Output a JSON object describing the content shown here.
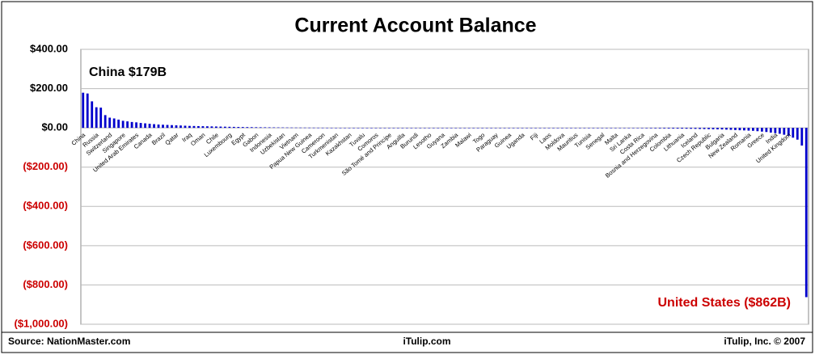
{
  "chart_data": {
    "type": "bar",
    "title": "Current Account Balance",
    "categories": [
      "China",
      null,
      null,
      "Russia",
      null,
      null,
      "Switzerland",
      null,
      null,
      "Singapore",
      null,
      null,
      "United Arab Emirates",
      null,
      null,
      "Canada",
      null,
      null,
      "Brazil",
      null,
      null,
      "Qatar",
      null,
      null,
      "Iraq",
      null,
      null,
      "Oman",
      null,
      null,
      "Chile",
      null,
      null,
      "Luxembourg",
      null,
      null,
      "Egypt",
      null,
      null,
      "Gabon",
      null,
      null,
      "Indonesia",
      null,
      null,
      "Uzbekistan",
      null,
      null,
      "Vietnam",
      null,
      null,
      "Papua New Guinea",
      null,
      null,
      "Cameroon",
      null,
      null,
      "Turkmenistan",
      null,
      null,
      "Kazakhstan",
      null,
      null,
      "Tuvalu",
      null,
      null,
      "Comoros",
      null,
      null,
      "São Tomé and Principe",
      null,
      null,
      "Anguilla",
      null,
      null,
      "Burundi",
      null,
      null,
      "Lesotho",
      null,
      null,
      "Guyana",
      null,
      null,
      "Zambia",
      null,
      null,
      "Malawi",
      null,
      null,
      "Togo",
      null,
      null,
      "Paraguay",
      null,
      null,
      "Guinea",
      null,
      null,
      "Uganda",
      null,
      null,
      "Fiji",
      null,
      null,
      "Laos",
      null,
      null,
      "Moldova",
      null,
      null,
      "Mauritius",
      null,
      null,
      "Tunisia",
      null,
      null,
      "Senegal",
      null,
      null,
      "Malta",
      null,
      null,
      "Sri Lanka",
      null,
      null,
      "Costa Rica",
      null,
      null,
      "Bosnia and Herzegovina",
      null,
      null,
      "Colombia",
      null,
      null,
      "Lithuania",
      null,
      null,
      "Iceland",
      null,
      null,
      "Czech Republic",
      null,
      null,
      "Bulgaria",
      null,
      null,
      "New Zealand",
      null,
      null,
      "Romania",
      null,
      null,
      "Greece",
      null,
      null,
      "India",
      null,
      null,
      "United Kingdom",
      null,
      null,
      null,
      null
    ],
    "values": [
      179,
      175,
      135,
      105,
      103,
      65,
      52,
      48,
      42,
      36,
      33,
      30,
      28,
      25,
      23,
      21,
      19,
      17,
      16,
      15,
      14,
      13,
      12,
      11,
      10,
      9.5,
      9,
      8.5,
      8,
      7.5,
      7,
      6.5,
      6,
      5.5,
      5,
      4.6,
      4.2,
      3.9,
      3.6,
      3.3,
      3,
      2.8,
      2.6,
      2.4,
      2.2,
      2,
      1.8,
      1.6,
      1.5,
      1.4,
      1.3,
      1.2,
      1.1,
      1,
      0.9,
      0.8,
      0.7,
      0.6,
      0.5,
      0.4,
      0.35,
      0.3,
      0.25,
      0.2,
      0.15,
      0.1,
      0.08,
      0.05,
      0.03,
      0.01,
      -0.01,
      -0.02,
      -0.03,
      -0.04,
      -0.05,
      -0.06,
      -0.07,
      -0.08,
      -0.09,
      -0.1,
      -0.11,
      -0.12,
      -0.13,
      -0.14,
      -0.15,
      -0.16,
      -0.17,
      -0.18,
      -0.19,
      -0.2,
      -0.22,
      -0.24,
      -0.26,
      -0.28,
      -0.3,
      -0.32,
      -0.34,
      -0.36,
      -0.38,
      -0.4,
      -0.43,
      -0.46,
      -0.5,
      -0.53,
      -0.56,
      -0.6,
      -0.64,
      -0.68,
      -0.72,
      -0.76,
      -0.8,
      -0.85,
      -0.9,
      -0.95,
      -1,
      -1.05,
      -1.1,
      -1.2,
      -1.3,
      -1.4,
      -1.5,
      -1.6,
      -1.7,
      -1.8,
      -1.9,
      -2,
      -2.2,
      -2.4,
      -2.6,
      -2.8,
      -3,
      -3.2,
      -3.4,
      -3.6,
      -3.8,
      -4,
      -4.3,
      -4.6,
      -5,
      -5.5,
      -6,
      -6.5,
      -7,
      -7.5,
      -8,
      -9,
      -10,
      -11,
      -12,
      -13,
      -14,
      -15,
      -17,
      -19,
      -21,
      -24,
      -27,
      -30,
      -35,
      -40,
      -50,
      -60,
      -90,
      -862
    ],
    "color": "#0000cc",
    "negative_tick_color": "#cc0000",
    "ylim": [
      -1000,
      400
    ],
    "yticks": [
      {
        "value": 400,
        "label": "$400.00"
      },
      {
        "value": 200,
        "label": "$200.00"
      },
      {
        "value": 0,
        "label": "$0.00"
      },
      {
        "value": -200,
        "label": "($200.00)"
      },
      {
        "value": -400,
        "label": "($400.00)"
      },
      {
        "value": -600,
        "label": "($600.00)"
      },
      {
        "value": -800,
        "label": "($800.00)"
      },
      {
        "value": -1000,
        "label": "($1,000.00)"
      }
    ],
    "grid": true,
    "annotations": [
      "China $179B",
      "United States ($862B)"
    ],
    "footer": [
      "Source: NationMaster.com",
      "iTulip.com",
      "iTulip, Inc. © 2007"
    ]
  }
}
